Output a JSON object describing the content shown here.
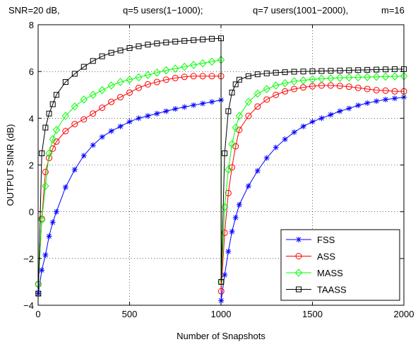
{
  "chart_data": {
    "type": "line",
    "title_parts": [
      "SNR=20 dB,",
      "q=5 users(1−1000);",
      "q=7 users(1001−2000),",
      "m=16"
    ],
    "xlabel": "Number of Snapshots",
    "ylabel": "OUTPUT SINR (dB)",
    "xlim": [
      0,
      2000
    ],
    "ylim": [
      -4,
      8
    ],
    "xticks": [
      0,
      500,
      1000,
      1500,
      2000
    ],
    "yticks": [
      -4,
      -2,
      0,
      2,
      4,
      6,
      8
    ],
    "grid": true,
    "legend_position": "bottom-right",
    "series": [
      {
        "name": "FSS",
        "color": "#0000ff",
        "marker": "star",
        "x": [
          1,
          20,
          40,
          60,
          80,
          100,
          150,
          200,
          250,
          300,
          350,
          400,
          450,
          500,
          550,
          600,
          650,
          700,
          750,
          800,
          850,
          900,
          950,
          1000,
          1001,
          1020,
          1040,
          1060,
          1080,
          1100,
          1150,
          1200,
          1250,
          1300,
          1350,
          1400,
          1450,
          1500,
          1550,
          1600,
          1650,
          1700,
          1750,
          1800,
          1850,
          1900,
          1950,
          2000
        ],
        "y": [
          -3.5,
          -2.5,
          -1.85,
          -1.05,
          -0.45,
          0.0,
          1.05,
          1.8,
          2.4,
          2.85,
          3.2,
          3.45,
          3.65,
          3.85,
          4.0,
          4.1,
          4.2,
          4.3,
          4.4,
          4.48,
          4.56,
          4.63,
          4.7,
          4.78,
          -3.8,
          -2.7,
          -1.7,
          -0.85,
          -0.25,
          0.3,
          1.1,
          1.75,
          2.3,
          2.75,
          3.1,
          3.4,
          3.65,
          3.85,
          4.0,
          4.15,
          4.3,
          4.42,
          4.55,
          4.65,
          4.73,
          4.8,
          4.85,
          4.9
        ]
      },
      {
        "name": "ASS",
        "color": "#ff0000",
        "marker": "circle",
        "x": [
          1,
          20,
          40,
          60,
          80,
          100,
          150,
          200,
          250,
          300,
          350,
          400,
          450,
          500,
          550,
          600,
          650,
          700,
          750,
          800,
          850,
          900,
          950,
          1000,
          1001,
          1020,
          1040,
          1060,
          1080,
          1100,
          1150,
          1200,
          1250,
          1300,
          1350,
          1400,
          1450,
          1500,
          1550,
          1600,
          1650,
          1700,
          1750,
          1800,
          1850,
          1900,
          1950,
          2000
        ],
        "y": [
          -3.1,
          -0.3,
          1.7,
          2.3,
          2.7,
          3.0,
          3.45,
          3.75,
          3.95,
          4.2,
          4.45,
          4.7,
          4.9,
          5.1,
          5.3,
          5.45,
          5.55,
          5.65,
          5.72,
          5.77,
          5.8,
          5.8,
          5.8,
          5.8,
          -3.4,
          -0.9,
          0.8,
          1.9,
          2.8,
          3.5,
          4.1,
          4.5,
          4.8,
          5.0,
          5.15,
          5.25,
          5.32,
          5.37,
          5.4,
          5.4,
          5.38,
          5.35,
          5.3,
          5.25,
          5.2,
          5.18,
          5.15,
          5.15
        ]
      },
      {
        "name": "MASS",
        "color": "#00ff00",
        "marker": "diamond",
        "x": [
          1,
          20,
          40,
          60,
          80,
          100,
          150,
          200,
          250,
          300,
          350,
          400,
          450,
          500,
          550,
          600,
          650,
          700,
          750,
          800,
          850,
          900,
          950,
          1000,
          1001,
          1020,
          1040,
          1060,
          1080,
          1100,
          1150,
          1200,
          1250,
          1300,
          1350,
          1400,
          1450,
          1500,
          1550,
          1600,
          1650,
          1700,
          1750,
          1800,
          1850,
          1900,
          1950,
          2000
        ],
        "y": [
          -3.1,
          -0.35,
          1.1,
          2.5,
          3.1,
          3.5,
          4.1,
          4.5,
          4.8,
          5.0,
          5.2,
          5.4,
          5.55,
          5.65,
          5.75,
          5.85,
          5.95,
          6.05,
          6.12,
          6.2,
          6.28,
          6.35,
          6.42,
          6.5,
          -3.0,
          0.2,
          1.8,
          2.9,
          3.6,
          4.1,
          4.7,
          5.05,
          5.25,
          5.4,
          5.5,
          5.58,
          5.62,
          5.66,
          5.69,
          5.71,
          5.73,
          5.74,
          5.75,
          5.76,
          5.77,
          5.78,
          5.79,
          5.8
        ]
      },
      {
        "name": "TAASS",
        "color": "#000000",
        "marker": "square",
        "x": [
          1,
          20,
          40,
          60,
          80,
          100,
          150,
          200,
          250,
          300,
          350,
          400,
          450,
          500,
          550,
          600,
          650,
          700,
          750,
          800,
          850,
          900,
          950,
          1000,
          1001,
          1020,
          1040,
          1060,
          1080,
          1100,
          1150,
          1200,
          1250,
          1300,
          1350,
          1400,
          1450,
          1500,
          1550,
          1600,
          1650,
          1700,
          1750,
          1800,
          1850,
          1900,
          1950,
          2000
        ],
        "y": [
          -3.5,
          2.5,
          3.6,
          4.2,
          4.6,
          5.0,
          5.55,
          5.9,
          6.2,
          6.45,
          6.65,
          6.8,
          6.9,
          7.0,
          7.08,
          7.15,
          7.2,
          7.24,
          7.28,
          7.31,
          7.34,
          7.37,
          7.4,
          7.42,
          -3.0,
          2.5,
          4.3,
          5.1,
          5.45,
          5.65,
          5.8,
          5.88,
          5.92,
          5.95,
          5.97,
          5.99,
          6.0,
          6.01,
          6.02,
          6.03,
          6.04,
          6.05,
          6.06,
          6.07,
          6.08,
          6.09,
          6.1,
          6.1
        ]
      }
    ]
  }
}
